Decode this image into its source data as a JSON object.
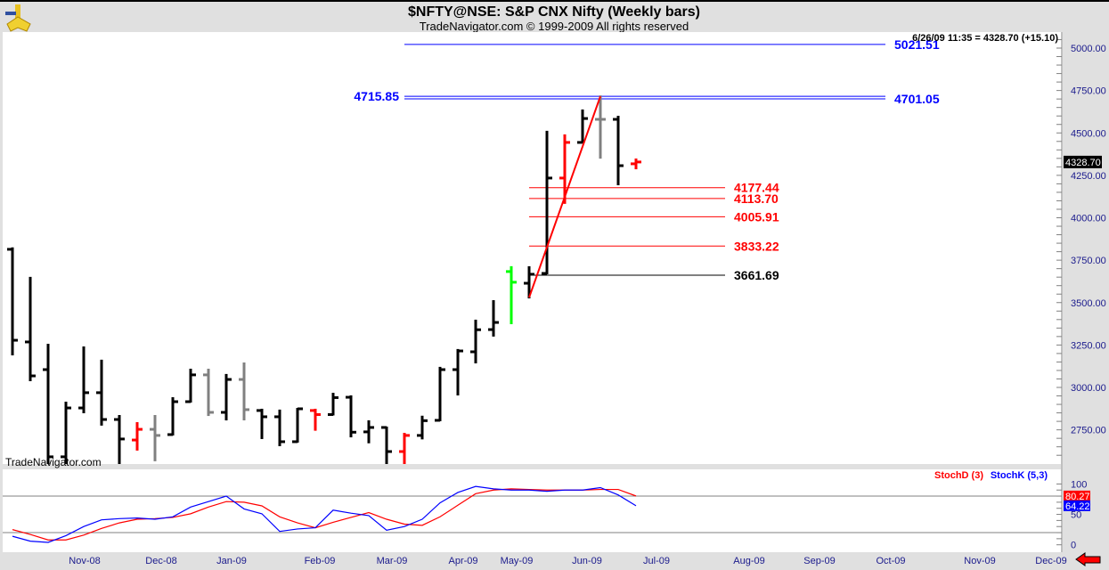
{
  "header": {
    "title": "$NFTY@NSE:  S&P CNX Nifty  (Weekly bars)",
    "subtitle": "TradeNavigator.com © 1999-2009 All rights reserved",
    "logo_icon": "sextant-icon",
    "quote": "6/26/09 11:35 = 4328.70 (+15.10)",
    "watermark": "TradeNavigator.com"
  },
  "colors": {
    "up": "#000000",
    "down_red": "#ff0000",
    "gray": "#808080",
    "green": "#00ff00",
    "blue_level": "#0000ff",
    "red_level": "#ff0000",
    "stochD": "#ff0000",
    "stochK": "#0000ff"
  },
  "chart_data": [
    {
      "type": "ohlc-bar",
      "title": "$NFTY@NSE:  S&P CNX Nifty  (Weekly bars)",
      "ylim": [
        2540,
        5080
      ],
      "y_ticks": [
        "5000.00",
        "4750.00",
        "4500.00",
        "4250.00",
        "4000.00",
        "3750.00",
        "3500.00",
        "3250.00",
        "3000.00",
        "2750.00"
      ],
      "x_ticks": [
        "Nov-08",
        "Dec-08",
        "Jan-09",
        "Feb-09",
        "Mar-09",
        "Apr-09",
        "May-09",
        "Jun-09",
        "Jul-09",
        "Aug-09",
        "Sep-09",
        "Oct-09",
        "Nov-09",
        "Dec-09"
      ],
      "last_price_label": "4328.70",
      "bars": [
        {
          "date": "2008-10-24",
          "o": 3814,
          "h": 3820,
          "l": 3194,
          "c": 3278,
          "color": "black"
        },
        {
          "date": "2008-10-31",
          "o": 3268,
          "h": 3646,
          "l": 3042,
          "c": 3068,
          "color": "black"
        },
        {
          "date": "2008-11-07",
          "o": 3105,
          "h": 3252,
          "l": 2528,
          "c": 2591,
          "color": "black"
        },
        {
          "date": "2008-11-14",
          "o": 2591,
          "h": 2911,
          "l": 2540,
          "c": 2879,
          "color": "black"
        },
        {
          "date": "2008-11-21",
          "o": 2879,
          "h": 3236,
          "l": 2853,
          "c": 2969,
          "color": "black"
        },
        {
          "date": "2008-11-28",
          "o": 2969,
          "h": 3158,
          "l": 2780,
          "c": 2811,
          "color": "black"
        },
        {
          "date": "2008-12-05",
          "o": 2811,
          "h": 2832,
          "l": 2530,
          "c": 2696,
          "color": "black"
        },
        {
          "date": "2008-12-12",
          "o": 2690,
          "h": 2790,
          "l": 2633,
          "c": 2753,
          "color": "red"
        },
        {
          "date": "2008-12-19",
          "o": 2753,
          "h": 2832,
          "l": 2570,
          "c": 2717,
          "color": "gray"
        },
        {
          "date": "2008-12-26",
          "o": 2722,
          "h": 2937,
          "l": 2722,
          "c": 2916,
          "color": "black"
        },
        {
          "date": "2009-01-02",
          "o": 2916,
          "h": 3105,
          "l": 2916,
          "c": 3074,
          "color": "black"
        },
        {
          "date": "2009-01-09",
          "o": 3074,
          "h": 3105,
          "l": 2837,
          "c": 2853,
          "color": "gray"
        },
        {
          "date": "2009-01-16",
          "o": 2853,
          "h": 3074,
          "l": 2811,
          "c": 3047,
          "color": "black"
        },
        {
          "date": "2009-01-23",
          "o": 3047,
          "h": 3142,
          "l": 2811,
          "c": 2869,
          "color": "gray"
        },
        {
          "date": "2009-01-30",
          "o": 2864,
          "h": 2869,
          "l": 2701,
          "c": 2827,
          "color": "black"
        },
        {
          "date": "2009-02-06",
          "o": 2827,
          "h": 2864,
          "l": 2659,
          "c": 2680,
          "color": "black"
        },
        {
          "date": "2009-02-13",
          "o": 2680,
          "h": 2874,
          "l": 2680,
          "c": 2874,
          "color": "black"
        },
        {
          "date": "2009-02-20",
          "o": 2864,
          "h": 2869,
          "l": 2750,
          "c": 2840,
          "color": "red"
        },
        {
          "date": "2009-02-27",
          "o": 2840,
          "h": 2963,
          "l": 2840,
          "c": 2940,
          "color": "black"
        },
        {
          "date": "2009-03-06",
          "o": 2942,
          "h": 2948,
          "l": 2711,
          "c": 2736,
          "color": "black"
        },
        {
          "date": "2009-03-13",
          "o": 2738,
          "h": 2801,
          "l": 2676,
          "c": 2764,
          "color": "black"
        },
        {
          "date": "2009-03-20",
          "o": 2764,
          "h": 2764,
          "l": 2537,
          "c": 2622,
          "color": "black"
        },
        {
          "date": "2009-03-27",
          "o": 2622,
          "h": 2727,
          "l": 2550,
          "c": 2717,
          "color": "red"
        },
        {
          "date": "2009-04-03",
          "o": 2717,
          "h": 2828,
          "l": 2699,
          "c": 2804,
          "color": "black"
        },
        {
          "date": "2009-04-10",
          "o": 2806,
          "h": 3116,
          "l": 2806,
          "c": 3105,
          "color": "black"
        },
        {
          "date": "2009-04-17",
          "o": 3105,
          "h": 3221,
          "l": 2958,
          "c": 3215,
          "color": "black"
        },
        {
          "date": "2009-04-24",
          "o": 3210,
          "h": 3394,
          "l": 3147,
          "c": 3340,
          "color": "black"
        },
        {
          "date": "2009-05-01",
          "o": 3341,
          "h": 3509,
          "l": 3305,
          "c": 3383,
          "color": "black"
        },
        {
          "date": "2009-05-08",
          "o": 3683,
          "h": 3709,
          "l": 3378,
          "c": 3620,
          "color": "green"
        },
        {
          "date": "2009-05-15",
          "o": 3614,
          "h": 3709,
          "l": 3530,
          "c": 3667,
          "color": "black"
        },
        {
          "date": "2009-05-22",
          "o": 3672,
          "h": 4507,
          "l": 3672,
          "c": 4234,
          "color": "black"
        },
        {
          "date": "2009-05-29",
          "o": 4234,
          "h": 4486,
          "l": 4087,
          "c": 4444,
          "color": "red"
        },
        {
          "date": "2009-06-05",
          "o": 4444,
          "h": 4633,
          "l": 4444,
          "c": 4585,
          "color": "black"
        },
        {
          "date": "2009-06-12",
          "o": 4580,
          "h": 4715.85,
          "l": 4354,
          "c": 4580,
          "color": "gray"
        },
        {
          "date": "2009-06-19",
          "o": 4580,
          "h": 4596,
          "l": 4197,
          "c": 4307,
          "color": "black"
        },
        {
          "date": "2009-06-26",
          "o": 4318,
          "h": 4344,
          "l": 4291,
          "c": 4328.7,
          "color": "red"
        }
      ],
      "levels": [
        {
          "price": 5021.51,
          "label": "5021.51",
          "color": "blue",
          "from": "2009-03-27",
          "to": "2009-10-02",
          "label_side": "right"
        },
        {
          "price": 4715.85,
          "label": "4715.85",
          "color": "blue",
          "from": "2009-03-27",
          "to": "2009-10-02",
          "label_side": "left"
        },
        {
          "price": 4701.05,
          "label": "4701.05",
          "color": "blue",
          "from": "2009-03-27",
          "to": "2009-10-02",
          "label_side": "right"
        },
        {
          "price": 4177.44,
          "label": "4177.44",
          "color": "red",
          "from": "2009-05-15",
          "to": "2009-07-31",
          "label_side": "right"
        },
        {
          "price": 4113.7,
          "label": "4113.70",
          "color": "red",
          "from": "2009-05-15",
          "to": "2009-07-31",
          "label_side": "right"
        },
        {
          "price": 4005.91,
          "label": "4005.91",
          "color": "red",
          "from": "2009-05-15",
          "to": "2009-07-31",
          "label_side": "right"
        },
        {
          "price": 3833.22,
          "label": "3833.22",
          "color": "red",
          "from": "2009-05-15",
          "to": "2009-07-31",
          "label_side": "right"
        },
        {
          "price": 3661.69,
          "label": "3661.69",
          "color": "black",
          "from": "2009-05-15",
          "to": "2009-07-31",
          "label_side": "right"
        }
      ],
      "trendline": {
        "from": {
          "date": "2009-05-15",
          "price": 3530
        },
        "to": {
          "date": "2009-06-12",
          "price": 4715.85
        },
        "color": "red"
      }
    },
    {
      "type": "line",
      "ylim": [
        0,
        100
      ],
      "y_ticks": [
        "100",
        "50",
        "0"
      ],
      "reference_lines": [
        80,
        20
      ],
      "legend": [
        "StochD (3)",
        "StochK (5,3)"
      ],
      "series": [
        {
          "name": "StochD (3)",
          "color": "red",
          "last_label": "80.27",
          "values": [
            25,
            17,
            8,
            8,
            16,
            27,
            36,
            42,
            43,
            45,
            51,
            62,
            71,
            70,
            64,
            46,
            36,
            28,
            37,
            45,
            53,
            42,
            34,
            32,
            46,
            65,
            84,
            90,
            92,
            91,
            90,
            90,
            90,
            91,
            91,
            80.27
          ]
        },
        {
          "name": "StochK (5,3)",
          "color": "blue",
          "last_label": "64.22",
          "values": [
            14,
            6,
            4,
            15,
            30,
            41,
            43,
            44,
            42,
            46,
            62,
            71,
            80,
            59,
            51,
            22,
            26,
            28,
            57,
            52,
            48,
            24,
            30,
            42,
            69,
            86,
            96,
            92,
            90,
            90,
            88,
            90,
            90,
            94,
            82,
            64.22
          ]
        }
      ]
    }
  ],
  "footer": {
    "scroll_icon": "left-arrow-icon"
  }
}
